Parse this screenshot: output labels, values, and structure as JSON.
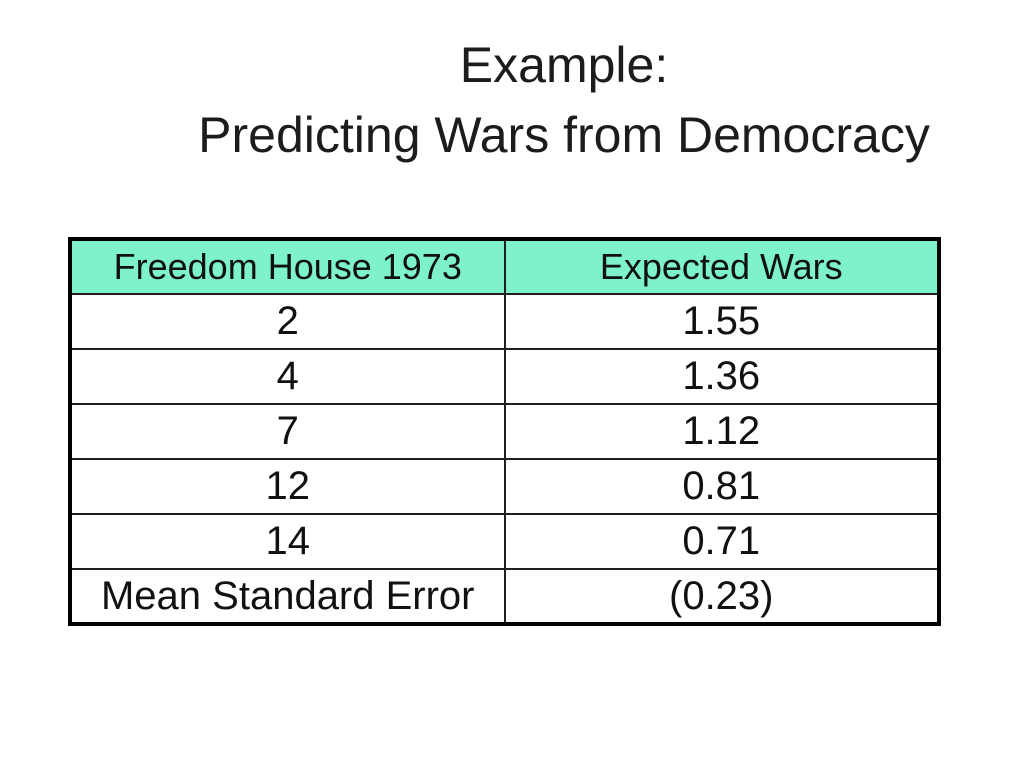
{
  "slide": {
    "background": "#ffffff",
    "title": {
      "line1": "Example:",
      "line2": "Predicting Wars from Democracy"
    },
    "table": {
      "header_bg": "#7df2cc",
      "outer_border_color": "#000000",
      "inner_border_color": "#1f1f1f",
      "columns": [
        "Freedom House 1973",
        "Expected Wars"
      ],
      "rows": [
        [
          "2",
          "1.55"
        ],
        [
          "4",
          "1.36"
        ],
        [
          "7",
          "1.12"
        ],
        [
          "12",
          "0.81"
        ],
        [
          "14",
          "0.71"
        ],
        [
          "Mean Standard Error",
          "(0.23)"
        ]
      ]
    }
  },
  "chart_data": {
    "type": "table",
    "title": "Example: Predicting Wars from Democracy",
    "columns": [
      "Freedom House 1973",
      "Expected Wars"
    ],
    "x": [
      2,
      4,
      7,
      12,
      14
    ],
    "expected_wars": [
      1.55,
      1.36,
      1.12,
      0.81,
      0.71
    ],
    "mean_standard_error": "(0.23)"
  }
}
